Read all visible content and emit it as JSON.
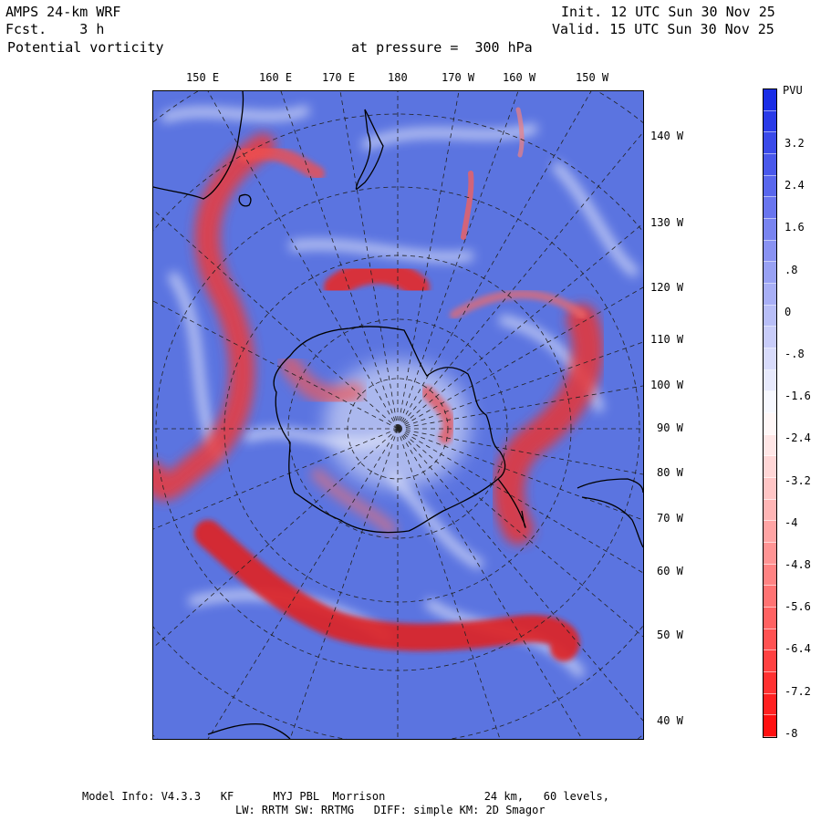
{
  "header": {
    "model": "AMPS 24-km WRF",
    "forecast": "Fcst.    3 h",
    "field": "Potential vorticity",
    "pressure": "at pressure =  300 hPa",
    "init": "Init. 12 UTC Sun 30 Nov 25",
    "valid": "Valid. 15 UTC Sun 30 Nov 25"
  },
  "longitude_labels": [
    "150 E",
    "160 E",
    "170 E",
    "180",
    "170 W",
    "160 W",
    "150 W"
  ],
  "latitude_side_labels": [
    "140 W",
    "130 W",
    "120 W",
    "110 W",
    "100 W",
    "90 W",
    "80 W",
    "70 W",
    "60 W",
    "50 W",
    "40 W"
  ],
  "colorbar": {
    "unit": "PVU",
    "tick_labels": [
      "3.2",
      "2.4",
      "1.6",
      ".8",
      "0",
      "-.8",
      "-1.6",
      "-2.4",
      "-3.2",
      "-4",
      "-4.8",
      "-5.6",
      "-6.4",
      "-7.2",
      "-8"
    ],
    "colors": {
      "positive_max": "#1a2de6",
      "zero": "#ffffff",
      "negative_max": "#ff1010",
      "field_background": "#5b74e0"
    }
  },
  "footer": {
    "line1": "Model Info: V4.3.3   KF      MYJ PBL  Morrison               24 km,   60 levels,",
    "line2": "LW: RRTM SW: RRTMG   DIFF: simple KM: 2D Smagor"
  }
}
